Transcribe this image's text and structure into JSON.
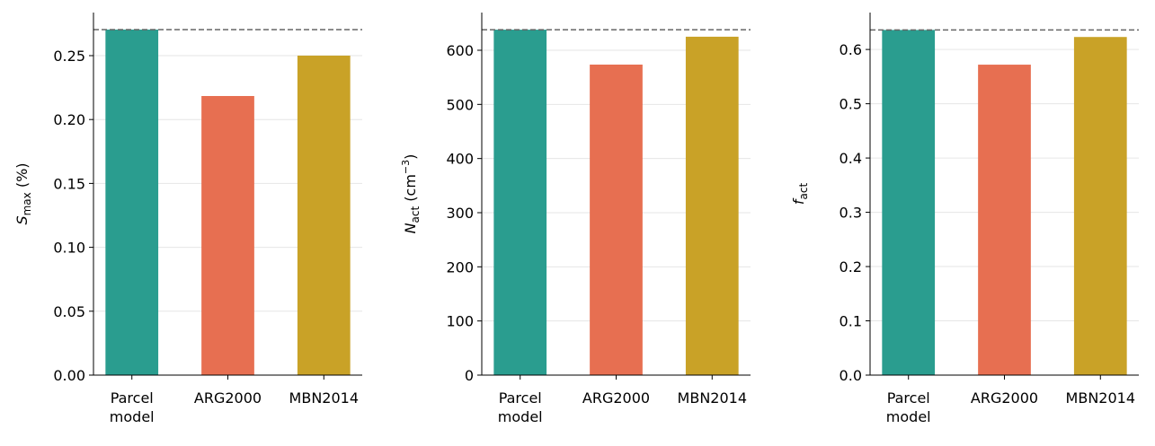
{
  "chart_data": [
    {
      "type": "bar",
      "ylabel": [
        "S",
        "max",
        " (%)"
      ],
      "categories": [
        "Parcel model",
        "ARG2000",
        "MBN2014"
      ],
      "values": [
        0.2704,
        0.2184,
        0.25
      ],
      "colors": [
        "#2a9d8f",
        "#e76f51",
        "#c9a227"
      ],
      "reference_line": 0.2704,
      "ylim": [
        0,
        0.2837
      ],
      "yticks": [
        {
          "value": 0,
          "label": "0.00"
        },
        0.05,
        {
          "value": 0.1,
          "label": "0.10"
        },
        0.15,
        {
          "value": 0.2,
          "label": "0.20"
        },
        0.25
      ],
      "grid": true
    },
    {
      "type": "bar",
      "ylabel": [
        "N",
        "act",
        " (cm",
        "−3",
        ")"
      ],
      "categories": [
        "Parcel model",
        "ARG2000",
        "MBN2014"
      ],
      "values": [
        638,
        573.5,
        625
      ],
      "colors": [
        "#2a9d8f",
        "#e76f51",
        "#c9a227"
      ],
      "reference_line": 638,
      "ylim": [
        0,
        669.6
      ],
      "yticks": [
        0,
        100,
        200,
        300,
        400,
        500,
        600
      ],
      "grid": true
    },
    {
      "type": "bar",
      "ylabel": [
        "f",
        "act"
      ],
      "categories": [
        "Parcel model",
        "ARG2000",
        "MBN2014"
      ],
      "values": [
        0.636,
        0.572,
        0.623
      ],
      "colors": [
        "#2a9d8f",
        "#e76f51",
        "#c9a227"
      ],
      "reference_line": 0.636,
      "ylim": [
        0,
        0.668
      ],
      "yticks": [
        {
          "value": 0,
          "label": "0.0"
        },
        0.1,
        0.2,
        0.3,
        0.4,
        0.5,
        0.6
      ],
      "grid": true
    }
  ]
}
